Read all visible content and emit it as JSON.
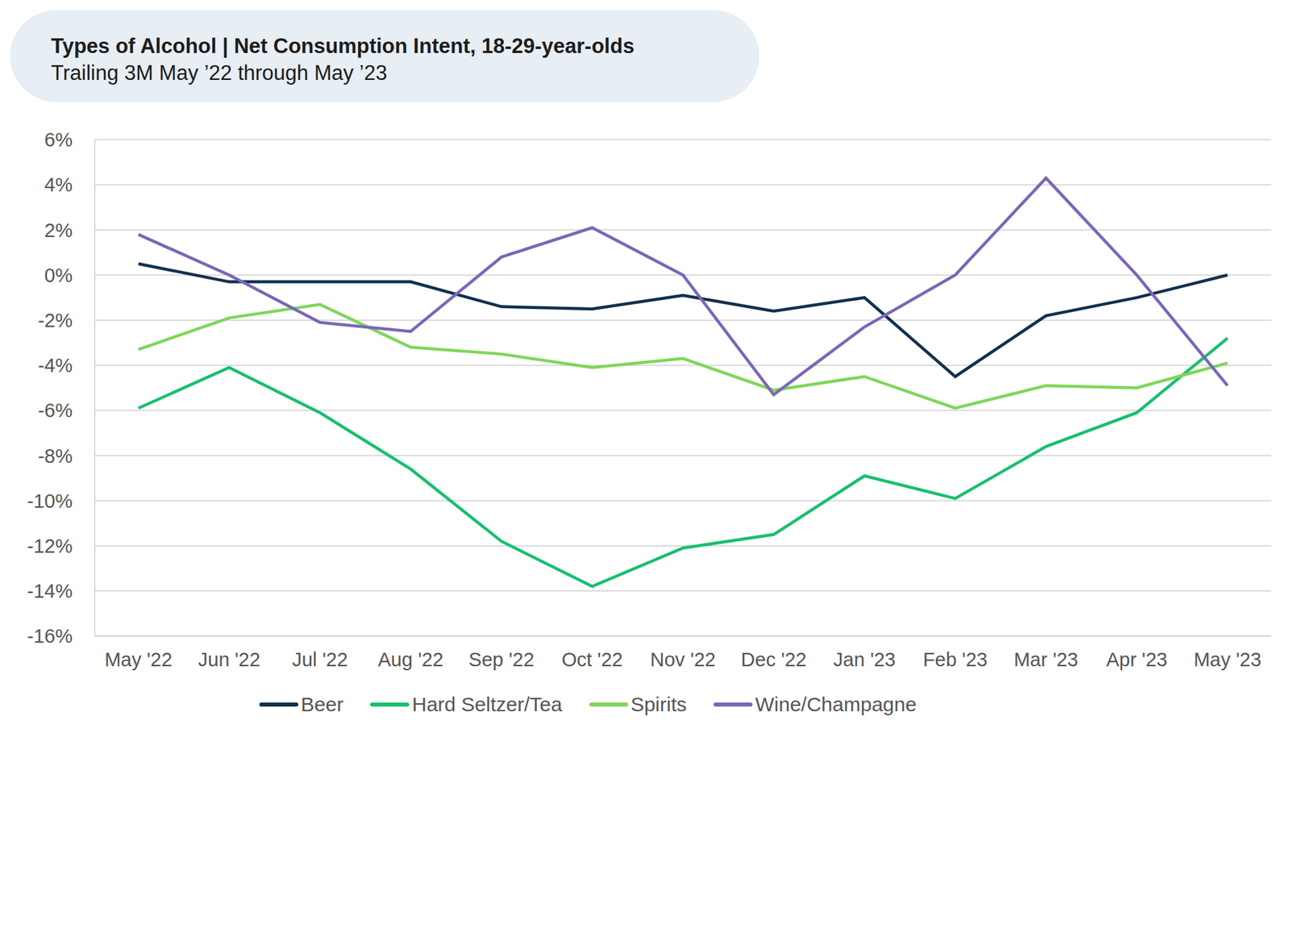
{
  "chart_data": {
    "type": "line",
    "title": "Types of Alcohol | Net Consumption Intent, 18-29-year-olds",
    "subtitle": "Trailing 3M May ’22 through May ’23",
    "categories": [
      "May '22",
      "Jun '22",
      "Jul '22",
      "Aug '22",
      "Sep '22",
      "Oct '22",
      "Nov '22",
      "Dec '22",
      "Jan '23",
      "Feb '23",
      "Mar '23",
      "Apr '23",
      "May '23"
    ],
    "series": [
      {
        "name": "Beer",
        "color": "#12304d",
        "values": [
          0.5,
          -0.3,
          -0.3,
          -0.3,
          -1.4,
          -1.5,
          -0.9,
          -1.6,
          -1.0,
          -4.5,
          -1.8,
          -1.0,
          0.0
        ]
      },
      {
        "name": "Hard Seltzer/Tea",
        "color": "#18bf6f",
        "values": [
          -5.9,
          -4.1,
          -6.1,
          -8.6,
          -11.8,
          -13.8,
          -12.1,
          -11.5,
          -8.9,
          -9.9,
          -7.6,
          -6.1,
          -2.8
        ]
      },
      {
        "name": "Spirits",
        "color": "#7fd65a",
        "values": [
          -3.3,
          -1.9,
          -1.3,
          -3.2,
          -3.5,
          -4.1,
          -3.7,
          -5.1,
          -4.5,
          -5.9,
          -4.9,
          -5.0,
          -3.9
        ]
      },
      {
        "name": "Wine/Champagne",
        "color": "#7b66b8",
        "values": [
          1.8,
          0.0,
          -2.1,
          -2.5,
          0.8,
          2.1,
          0.0,
          -5.3,
          -2.3,
          0.0,
          4.3,
          0.0,
          -4.9
        ]
      }
    ],
    "ylim": [
      -16,
      6
    ],
    "yticks": [
      {
        "value": 6,
        "label": "6%"
      },
      {
        "value": 4,
        "label": "4%"
      },
      {
        "value": 2,
        "label": "2%"
      },
      {
        "value": 0,
        "label": "0%"
      },
      {
        "value": -2,
        "label": "-2%"
      },
      {
        "value": -4,
        "label": "-4%"
      },
      {
        "value": -6,
        "label": "-6%"
      },
      {
        "value": -8,
        "label": "-8%"
      },
      {
        "value": -10,
        "label": "-10%"
      },
      {
        "value": -12,
        "label": "-12%"
      },
      {
        "value": -14,
        "label": "-14%"
      },
      {
        "value": -16,
        "label": "-16%"
      }
    ],
    "grid": true,
    "legend": "bottom"
  }
}
